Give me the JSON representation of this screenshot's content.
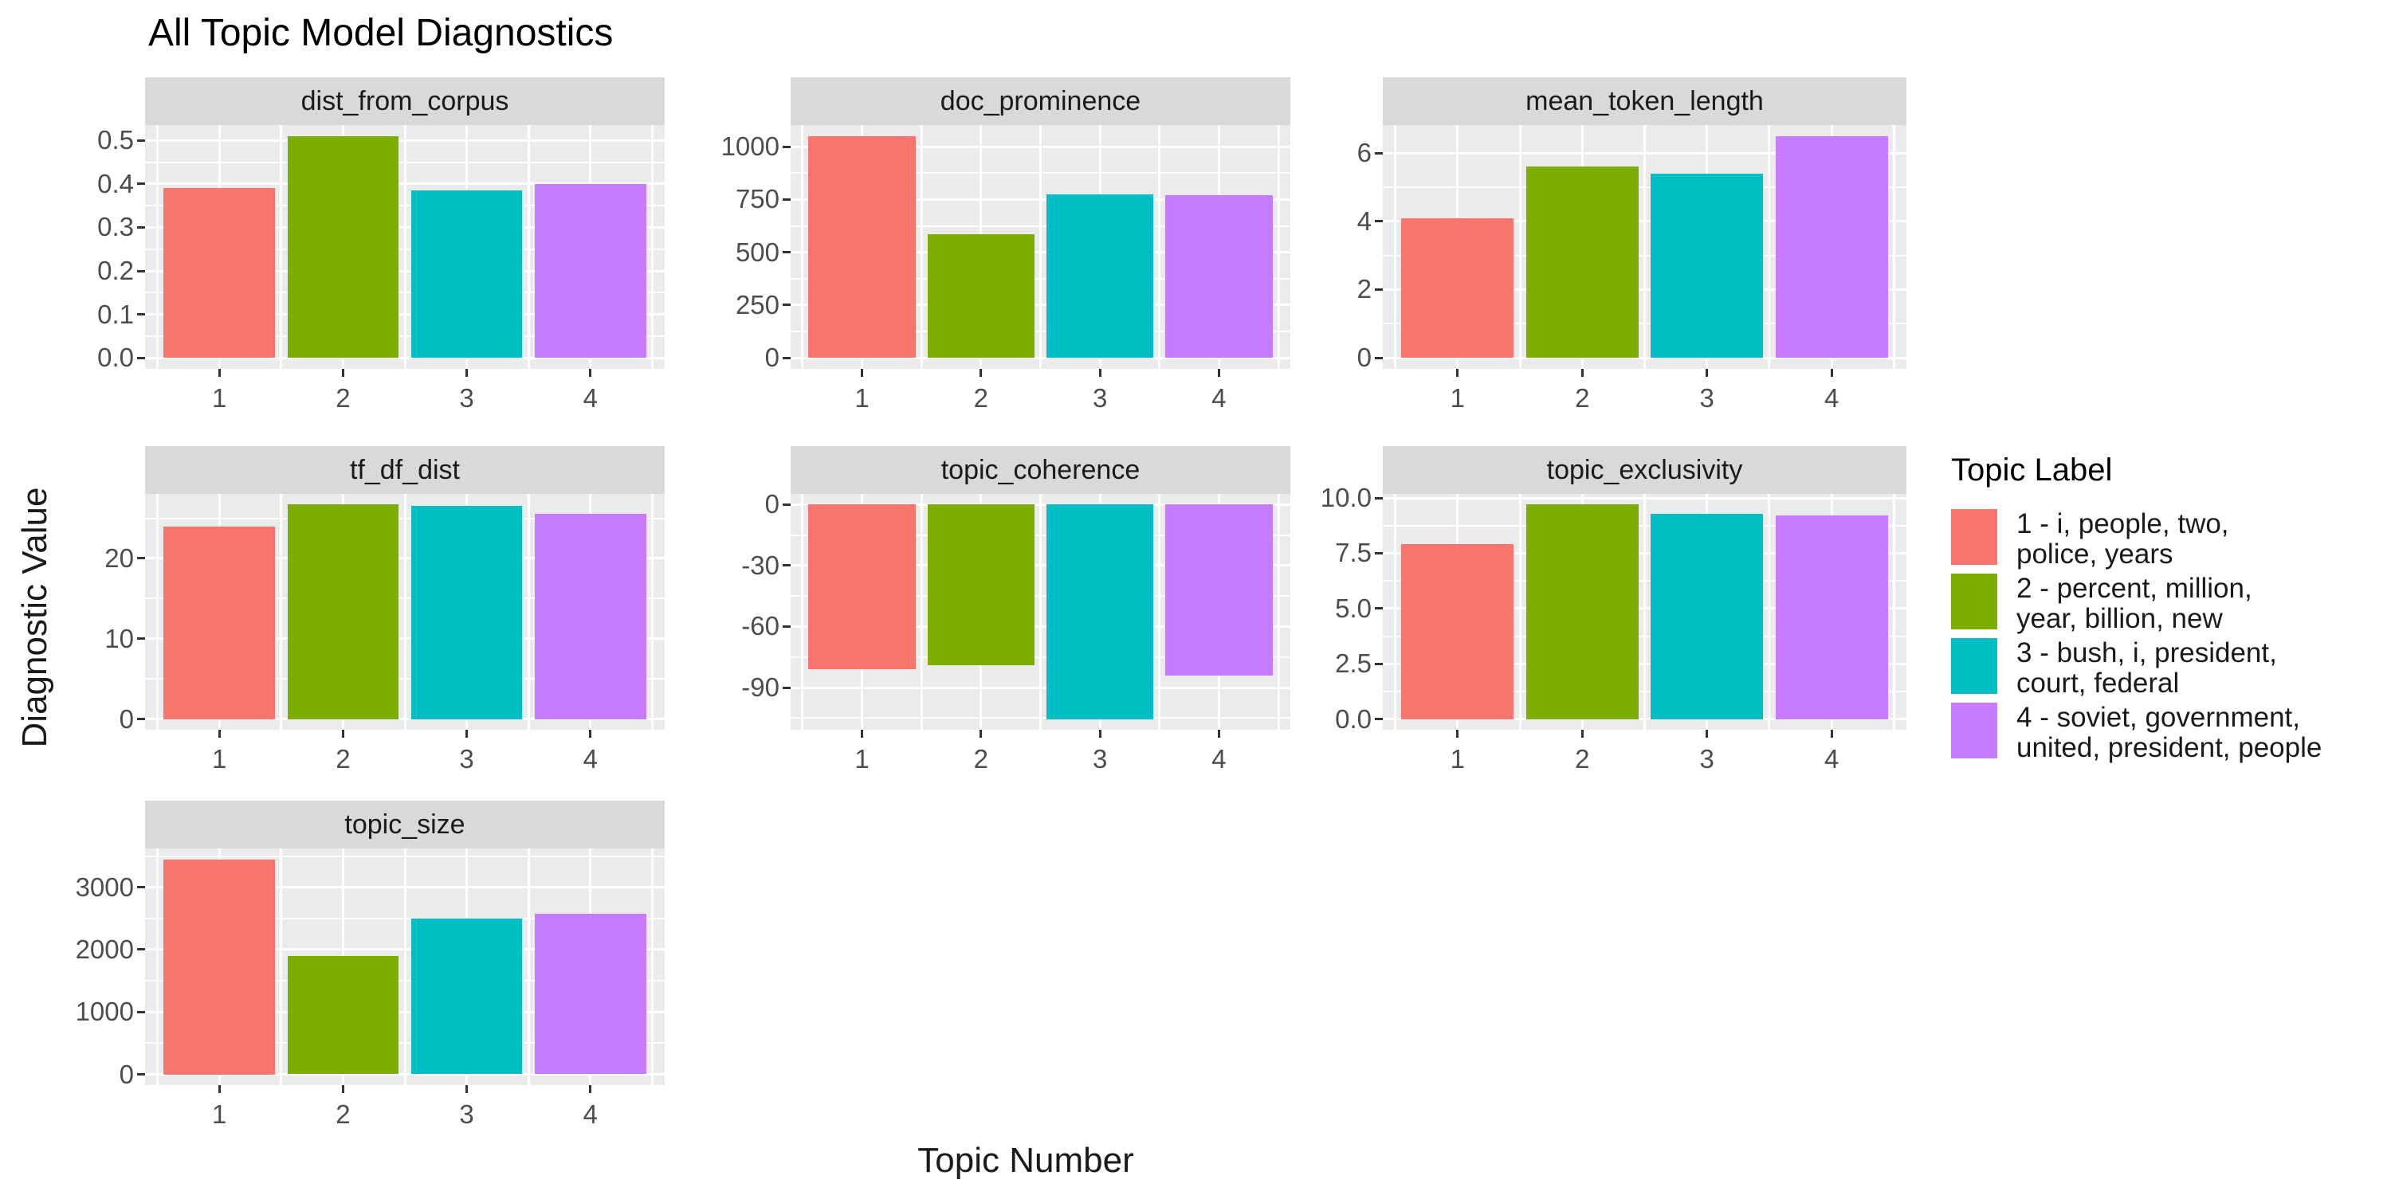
{
  "title": "All Topic Model Diagnostics",
  "axes": {
    "y_label": "Diagnostic Value",
    "x_label": "Topic Number"
  },
  "legend": {
    "title": "Topic Label",
    "entries": [
      {
        "label": "1 - i, people, two, police, years",
        "lines": [
          "1 - i, people, two,",
          "police, years"
        ],
        "color": "#F8766D"
      },
      {
        "label": "2 - percent, million, year, billion, new",
        "lines": [
          "2 - percent, million,",
          "year, billion, new"
        ],
        "color": "#7CAE00"
      },
      {
        "label": "3 - bush, i, president, court, federal",
        "lines": [
          "3 - bush, i, president,",
          "court, federal"
        ],
        "color": "#00BFC4"
      },
      {
        "label": "4 - soviet, government, united, president, people",
        "lines": [
          "4 - soviet, government,",
          "united, president, people"
        ],
        "color": "#C77CFF"
      }
    ]
  },
  "chart_data": {
    "type": "bar",
    "faceted": true,
    "title": "All Topic Model Diagnostics",
    "xlabel": "Topic Number",
    "ylabel": "Diagnostic Value",
    "categories": [
      "1",
      "2",
      "3",
      "4"
    ],
    "series_colors": [
      "#F8766D",
      "#7CAE00",
      "#00BFC4",
      "#C77CFF"
    ],
    "grid": true,
    "legend_position": "right",
    "facets": [
      {
        "name": "dist_from_corpus",
        "values": [
          0.39,
          0.51,
          0.385,
          0.4
        ],
        "yticks": [
          0.0,
          0.1,
          0.2,
          0.3,
          0.4,
          0.5
        ],
        "ytick_labels": [
          "0.0",
          "0.1",
          "0.2",
          "0.3",
          "0.4",
          "0.5"
        ]
      },
      {
        "name": "doc_prominence",
        "values": [
          1050,
          585,
          775,
          770
        ],
        "yticks": [
          0,
          250,
          500,
          750,
          1000
        ],
        "ytick_labels": [
          "0",
          "250",
          "500",
          "750",
          "1000"
        ]
      },
      {
        "name": "mean_token_length",
        "values": [
          4.1,
          5.6,
          5.4,
          6.5
        ],
        "yticks": [
          0,
          2,
          4,
          6
        ],
        "ytick_labels": [
          "0",
          "2",
          "4",
          "6"
        ]
      },
      {
        "name": "tf_df_dist",
        "values": [
          24,
          26.7,
          26.5,
          25.6
        ],
        "yticks": [
          0,
          10,
          20
        ],
        "ytick_labels": [
          "0",
          "10",
          "20"
        ]
      },
      {
        "name": "topic_coherence",
        "values": [
          -81,
          -79,
          -105.5,
          -84
        ],
        "yticks": [
          -90,
          -60,
          -30,
          0
        ],
        "ytick_labels": [
          "-90",
          "-60",
          "-30",
          "0"
        ]
      },
      {
        "name": "topic_exclusivity",
        "values": [
          7.9,
          9.7,
          9.3,
          9.2
        ],
        "yticks": [
          0.0,
          2.5,
          5.0,
          7.5,
          10.0
        ],
        "ytick_labels": [
          "0.0",
          "2.5",
          "5.0",
          "7.5",
          "10.0"
        ]
      },
      {
        "name": "topic_size",
        "values": [
          3450,
          1900,
          2500,
          2570
        ],
        "yticks": [
          0,
          1000,
          2000,
          3000
        ],
        "ytick_labels": [
          "0",
          "1000",
          "2000",
          "3000"
        ]
      }
    ]
  }
}
